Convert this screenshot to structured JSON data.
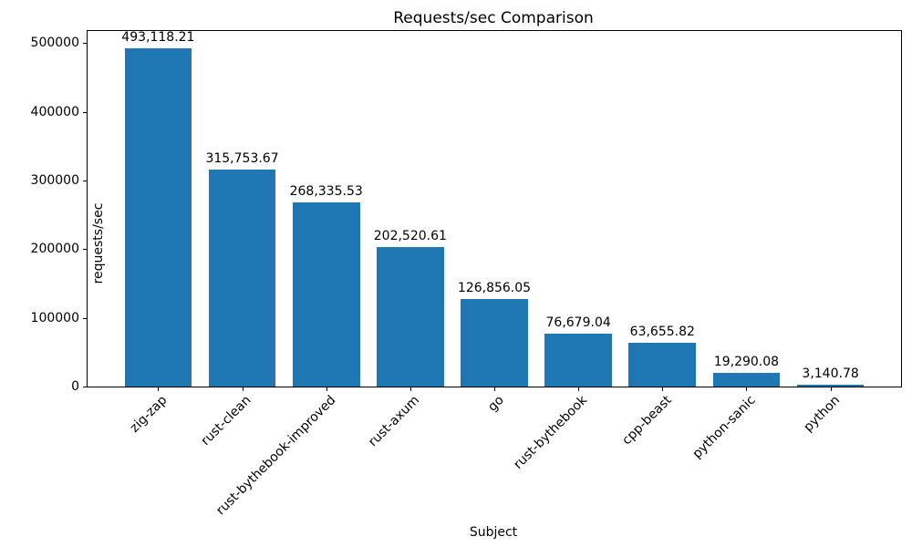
{
  "chart_data": {
    "type": "bar",
    "title": "Requests/sec Comparison",
    "xlabel": "Subject",
    "ylabel": "requests/sec",
    "categories": [
      "zig-zap",
      "rust-clean",
      "rust-bythebook-improved",
      "rust-axum",
      "go",
      "rust-bythebook",
      "cpp-beast",
      "python-sanic",
      "python"
    ],
    "values": [
      493118.21,
      315753.67,
      268335.53,
      202520.61,
      126856.05,
      76679.04,
      63655.82,
      19290.08,
      3140.78
    ],
    "value_labels": [
      "493,118.21",
      "315,753.67",
      "268,335.53",
      "202,520.61",
      "126,856.05",
      "76,679.04",
      "63,655.82",
      "19,290.08",
      "3,140.78"
    ],
    "ylim": [
      0,
      517774
    ],
    "yticks": [
      0,
      100000,
      200000,
      300000,
      400000,
      500000
    ],
    "ytick_labels": [
      "0",
      "100000",
      "200000",
      "300000",
      "400000",
      "500000"
    ],
    "bar_color": "#1f77b4",
    "grid": "off",
    "legend": "none",
    "bar_width_fraction": 0.8,
    "x_margin_units": 0.84,
    "x_units_span": 9.68
  }
}
